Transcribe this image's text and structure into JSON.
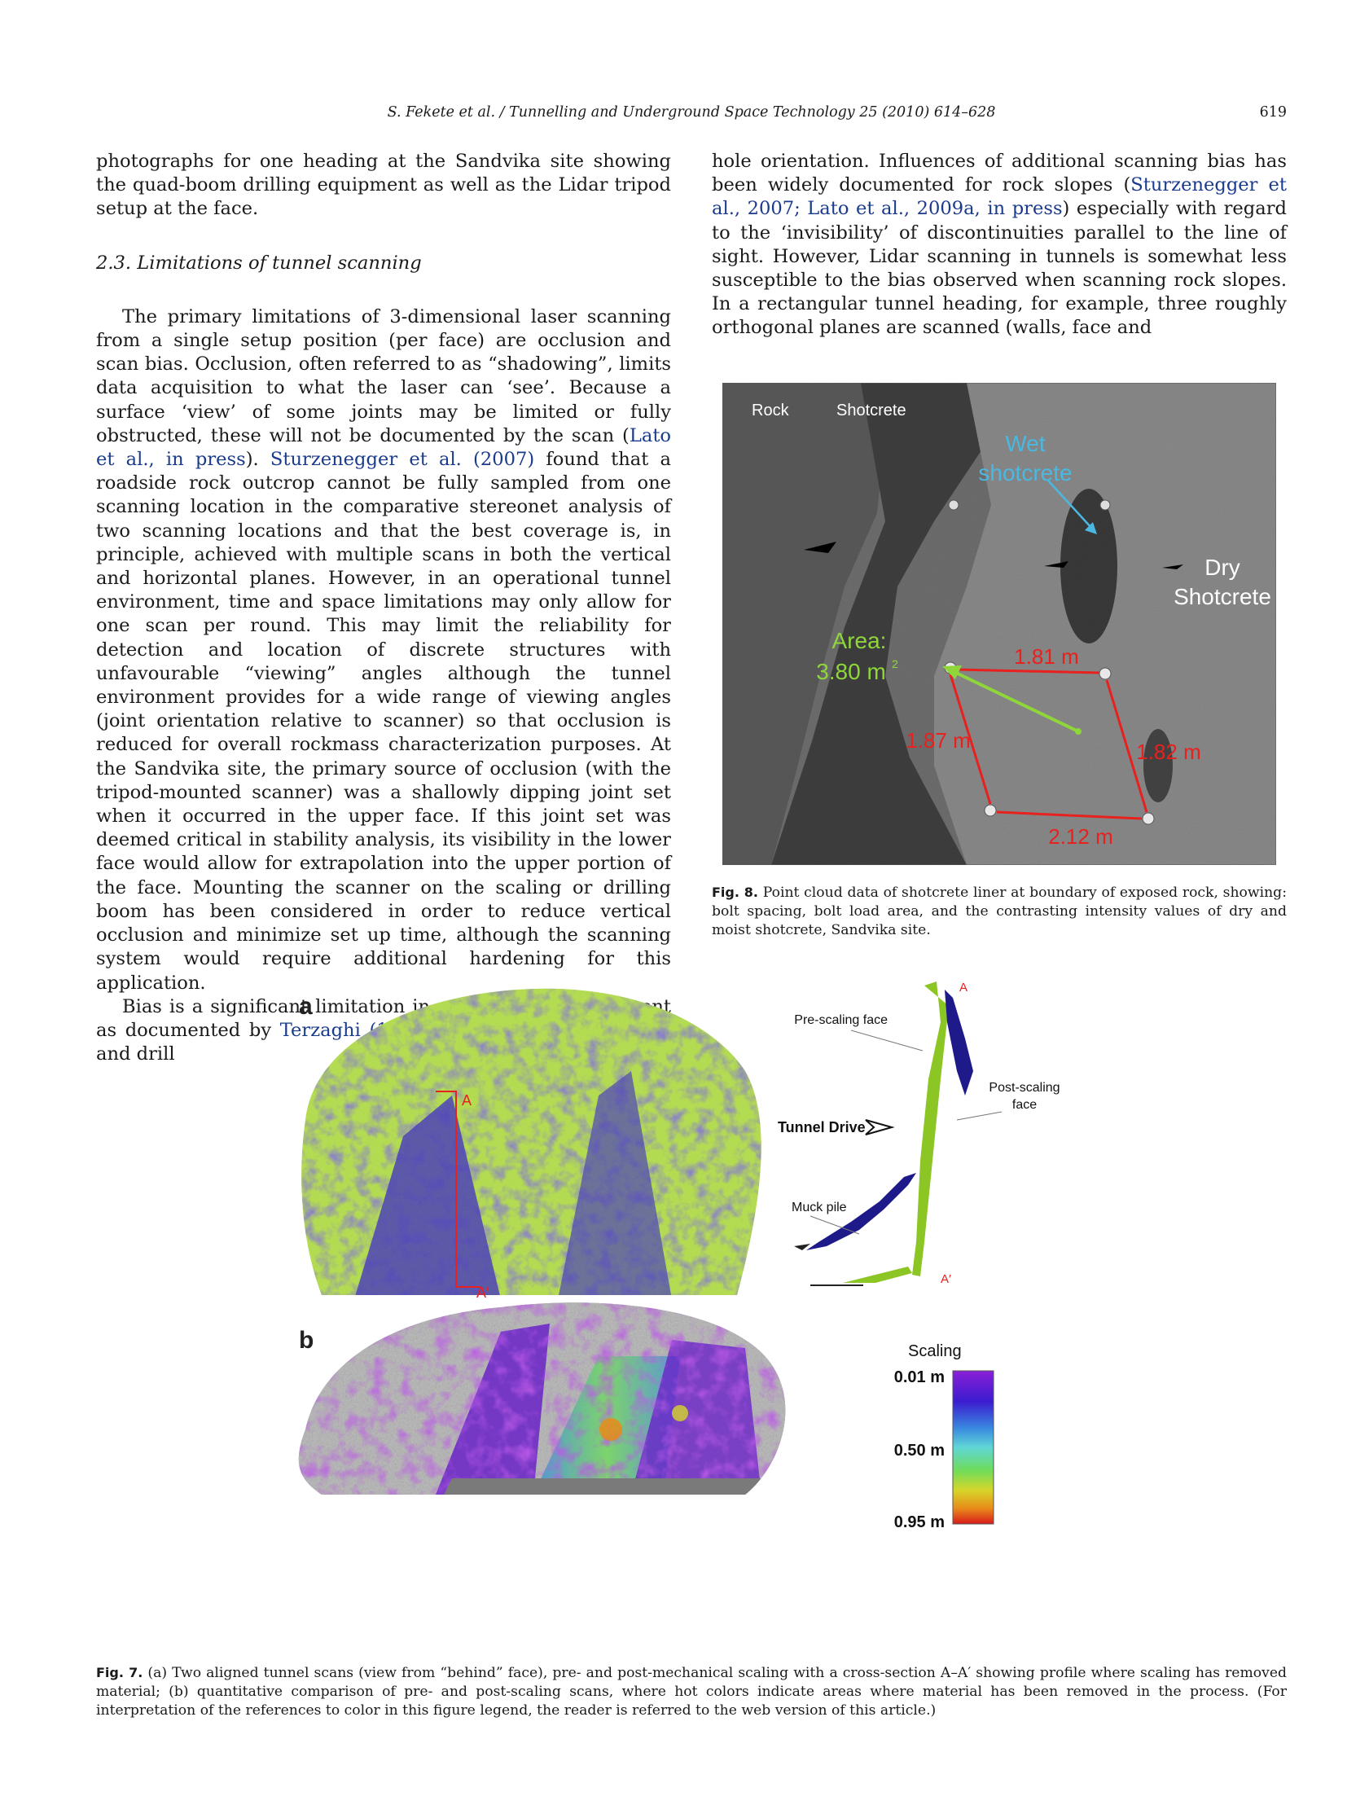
{
  "header": {
    "journal": "S. Fekete et al. / Tunnelling and Underground Space Technology 25 (2010) 614–628",
    "page_number": "619"
  },
  "left_column": {
    "p1": "photographs for one heading at the Sandvika site showing the quad-boom drilling equipment as well as the Lidar tripod setup at the face.",
    "section_heading": "2.3. Limitations of tunnel scanning",
    "p2_a": "The primary limitations of 3-dimensional laser scanning from a single setup position (per face) are occlusion and scan bias. Occlusion, often referred to as “shadowing”, limits data acquisition to what the laser can ‘see’. Because a surface ‘view’ of some joints may be limited or fully obstructed, these will not be documented by the scan (",
    "p2_ref1": "Lato et al., in press",
    "p2_b": "). ",
    "p2_ref2": "Sturzenegger et al. (2007)",
    "p2_c": " found that a roadside rock outcrop cannot be fully sampled from one scanning location in the comparative stereonet analysis of two scanning locations and that the best coverage is, in principle, achieved with multiple scans in both the vertical and horizontal planes. However, in an operational tunnel environment, time and space limitations may only allow for one scan per round. This may limit the reliability for detection and location of discrete structures with unfavourable “viewing” angles although the tunnel environment provides for a wide range of viewing angles (joint orientation relative to scanner) so that occlusion is reduced for overall rockmass characterization purposes. At the Sandvika site, the primary source of occlusion (with the tripod-mounted scanner) was a shallowly dipping joint set when it occurred in the upper face. If this joint set was deemed critical in stability analysis, its visibility in the lower face would allow for extrapolation into the upper portion of the face. Mounting the scanner on the scaling or drilling boom has been considered in order to reduce vertical occlusion and minimize set up time, although the scanning system would require additional hardening for this application.",
    "p3_a": "Bias is a significant limitation in geotechnical assessment as documented by ",
    "p3_ref": "Terzaghi (1965)",
    "p3_b": " with respect to scanline and drill"
  },
  "right_column": {
    "p1_a": "hole orientation. Influences of additional scanning bias has been widely documented for rock slopes (",
    "p1_ref": "Sturzenegger et al., 2007; Lato et al., 2009a, in press",
    "p1_b": ") especially with regard to the ‘invisibility’ of discontinuities parallel to the line of sight. However, Lidar scanning in tunnels is somewhat less susceptible to the bias observed when scanning rock slopes. In a rectangular tunnel heading, for example, three roughly orthogonal planes are scanned (walls, face and"
  },
  "figure8": {
    "label_rock": "Rock",
    "label_shotcrete": "Shotcrete",
    "label_wet_1": "Wet",
    "label_wet_2": "shotcrete",
    "label_dry_1": "Dry",
    "label_dry_2": "Shotcrete",
    "label_area_1": "Area:",
    "label_area_2": "3.80 m",
    "label_area_sup": "2",
    "dim_top": "1.81 m",
    "dim_left": "1.87 m",
    "dim_right": "1.82 m",
    "dim_bottom": "2.12 m",
    "caption_label": "Fig. 8.",
    "caption_text": " Point cloud data of shotcrete liner at boundary of exposed rock, showing: bolt spacing, bolt load area, and the contrasting intensity values of dry and moist shotcrete, Sandvika site.",
    "colors": {
      "dimension_red": "#e8201e",
      "wet_cyan": "#4ab8e0",
      "area_green": "#8fd63a"
    }
  },
  "figure7": {
    "panel_a": "a",
    "panel_b": "b",
    "section_A": "A",
    "section_A_prime": "A′",
    "label_pre_scaling": "Pre-scaling face",
    "label_post_scaling_1": "Post-scaling",
    "label_post_scaling_2": "face",
    "label_tunnel_drive": "Tunnel Drive",
    "label_muck_pile": "Muck pile",
    "profile_A": "A",
    "profile_A_prime": "A′",
    "legend_title": "Scaling",
    "legend_top": "0.01 m",
    "legend_mid": "0.50 m",
    "legend_bottom": "0.95 m",
    "caption_label": "Fig. 7.",
    "caption_text": " (a) Two aligned tunnel scans (view from “behind” face), pre- and post-mechanical scaling with a cross-section A–A′ showing profile where scaling has removed material; (b) quantitative comparison of pre- and post-scaling scans, where hot colors indicate areas where material has been removed in the process. (For interpretation of the references to color in this figure legend, the reader is referred to the web version of this article.)",
    "colors": {
      "pre_scan_green": "#a4d62a",
      "post_scan_blue": "#2418a8",
      "rock_grey": "#9a9a9a"
    }
  }
}
